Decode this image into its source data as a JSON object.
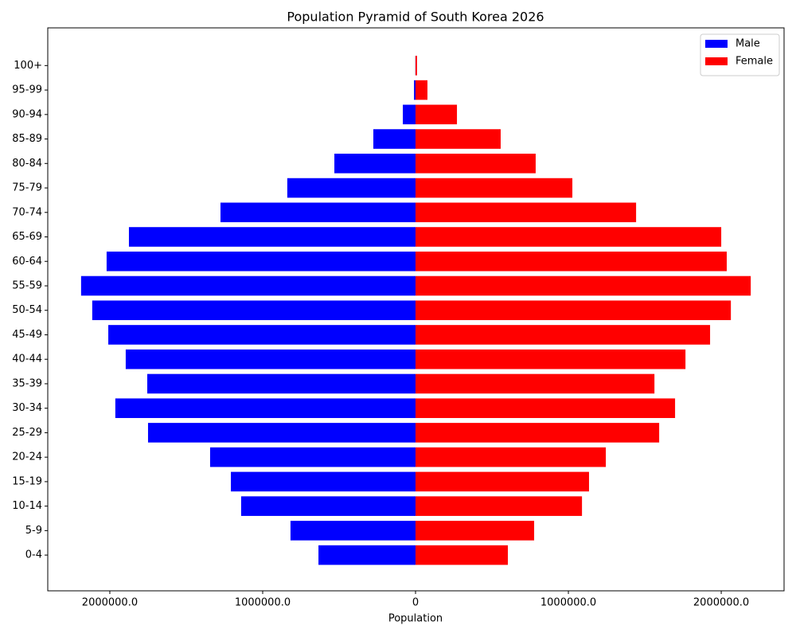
{
  "chart_data": {
    "type": "pyramid",
    "title": "Population Pyramid of South Korea 2026",
    "x_label": "Population",
    "categories": [
      "0-4",
      "5-9",
      "10-14",
      "15-19",
      "20-24",
      "25-29",
      "30-34",
      "35-39",
      "40-44",
      "45-49",
      "50-54",
      "55-59",
      "60-64",
      "65-69",
      "70-74",
      "75-79",
      "80-84",
      "85-89",
      "90-94",
      "95-99",
      "100+"
    ],
    "series": [
      {
        "name": "Male",
        "color": "#0000ff",
        "values": [
          -635000,
          -818000,
          -1141000,
          -1208000,
          -1344000,
          -1750000,
          -1964000,
          -1755000,
          -1896000,
          -2010000,
          -2115000,
          -2188000,
          -2021000,
          -1875000,
          -1276000,
          -839000,
          -531000,
          -276000,
          -83000,
          -10000,
          -1000
        ]
      },
      {
        "name": "Female",
        "color": "#ff0000",
        "values": [
          604000,
          776000,
          1089000,
          1135000,
          1245000,
          1594000,
          1698000,
          1563000,
          1766000,
          1927000,
          2063000,
          2193000,
          2036000,
          2000000,
          1443000,
          1026000,
          786000,
          557000,
          271000,
          78000,
          10000
        ]
      }
    ],
    "xlim": [
      -2406000,
      2411000
    ],
    "xticks": [
      {
        "value": -2000000,
        "label": "2000000.0"
      },
      {
        "value": -1000000,
        "label": "1000000.0"
      },
      0,
      {
        "value": 1000000,
        "label": "1000000.0"
      },
      {
        "value": 2000000,
        "label": "2000000.0"
      }
    ],
    "legend": "upper right"
  }
}
